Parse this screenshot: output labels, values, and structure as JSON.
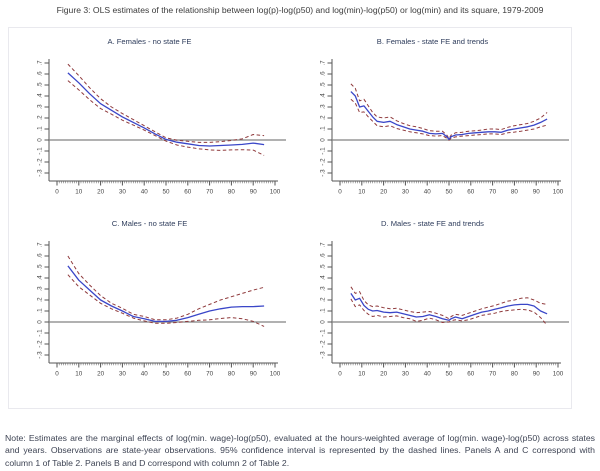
{
  "page": {
    "title": "Figure 3: OLS estimates of the relationship between log(p)-log(p50) and log(min)-log(p50) or log(min) and its square, 1979-2009",
    "note": "Note: Estimates are the marginal effects of log(min. wage)-log(p50), evaluated at the hours-weighted average of log(min. wage)-log(p50) across states and years. Observations are state-year observations. 95% confidence interval is represented by the dashed lines. Panels A and C correspond with column 1 of Table 2. Panels B and D correspond with column 2 of Table 2."
  },
  "colors": {
    "estimate_line": "#3a46c8",
    "ci_line": "#8f3a3c",
    "zero_line": "#828282",
    "axis": "#555555",
    "tick_label": "#444444"
  },
  "axis": {
    "xlim": [
      0,
      100
    ],
    "ylim": [
      -0.3,
      0.7
    ],
    "xticks": [
      0,
      10,
      20,
      30,
      40,
      50,
      60,
      70,
      80,
      90,
      100
    ],
    "x_minor_step": 1,
    "ytick_values": [
      0.7,
      0.6,
      0.5,
      0.4,
      0.3,
      0.2,
      0.1,
      0,
      -0.1,
      -0.2,
      -0.3
    ],
    "ytick_labels": [
      ".7",
      ".6",
      ".5",
      ".4",
      ".3",
      ".2",
      ".1",
      "0",
      "-.1",
      "-.2",
      "-.3"
    ],
    "grid": false,
    "legend": "none"
  },
  "chart_data": [
    {
      "type": "line",
      "panel": "A",
      "title": "A. Females - no state FE",
      "x": [
        5,
        10,
        15,
        20,
        25,
        30,
        35,
        40,
        45,
        50,
        55,
        60,
        65,
        70,
        75,
        80,
        85,
        90,
        95
      ],
      "series": [
        {
          "name": "estimate",
          "values": [
            0.61,
            0.52,
            0.42,
            0.33,
            0.27,
            0.21,
            0.16,
            0.11,
            0.055,
            0.005,
            -0.02,
            -0.035,
            -0.05,
            -0.055,
            -0.05,
            -0.045,
            -0.04,
            -0.028,
            -0.042
          ]
        },
        {
          "name": "ci_upper",
          "values": [
            0.69,
            0.585,
            0.475,
            0.375,
            0.3,
            0.24,
            0.185,
            0.13,
            0.075,
            0.02,
            -0.002,
            -0.012,
            -0.022,
            -0.022,
            -0.015,
            -0.005,
            0.01,
            0.05,
            0.04
          ]
        },
        {
          "name": "ci_lower",
          "values": [
            0.54,
            0.455,
            0.365,
            0.285,
            0.235,
            0.18,
            0.135,
            0.09,
            0.04,
            -0.01,
            -0.045,
            -0.065,
            -0.08,
            -0.09,
            -0.095,
            -0.09,
            -0.088,
            -0.092,
            -0.14
          ]
        }
      ]
    },
    {
      "type": "line",
      "panel": "B",
      "title": "B. Females - state FE and trends",
      "x": [
        5,
        7,
        9,
        11,
        13,
        15,
        17,
        20,
        23,
        26,
        29,
        32,
        35,
        38,
        41,
        44,
        47,
        49,
        50,
        51,
        53,
        56,
        59,
        62,
        65,
        68,
        71,
        74,
        77,
        80,
        83,
        86,
        89,
        92,
        95
      ],
      "series": [
        {
          "name": "estimate",
          "values": [
            0.44,
            0.4,
            0.3,
            0.31,
            0.26,
            0.21,
            0.17,
            0.16,
            0.17,
            0.14,
            0.12,
            0.1,
            0.09,
            0.08,
            0.06,
            0.055,
            0.06,
            0.03,
            0.005,
            0.03,
            0.045,
            0.05,
            0.06,
            0.065,
            0.07,
            0.075,
            0.075,
            0.07,
            0.09,
            0.1,
            0.11,
            0.12,
            0.135,
            0.16,
            0.19
          ]
        },
        {
          "name": "ci_upper",
          "values": [
            0.51,
            0.47,
            0.355,
            0.37,
            0.31,
            0.25,
            0.21,
            0.2,
            0.21,
            0.175,
            0.15,
            0.13,
            0.12,
            0.105,
            0.085,
            0.08,
            0.08,
            0.045,
            0.012,
            0.045,
            0.065,
            0.07,
            0.08,
            0.085,
            0.09,
            0.1,
            0.1,
            0.095,
            0.115,
            0.13,
            0.14,
            0.15,
            0.17,
            0.2,
            0.25
          ]
        },
        {
          "name": "ci_lower",
          "values": [
            0.37,
            0.335,
            0.25,
            0.255,
            0.21,
            0.17,
            0.13,
            0.12,
            0.13,
            0.105,
            0.09,
            0.075,
            0.065,
            0.055,
            0.04,
            0.035,
            0.04,
            0.015,
            -0.002,
            0.015,
            0.028,
            0.035,
            0.04,
            0.045,
            0.05,
            0.055,
            0.055,
            0.05,
            0.065,
            0.072,
            0.08,
            0.09,
            0.1,
            0.12,
            0.135
          ]
        }
      ]
    },
    {
      "type": "line",
      "panel": "C",
      "title": "C. Males - no state FE",
      "x": [
        5,
        10,
        15,
        20,
        25,
        30,
        35,
        40,
        45,
        50,
        55,
        60,
        65,
        70,
        75,
        80,
        85,
        90,
        95
      ],
      "series": [
        {
          "name": "estimate",
          "values": [
            0.51,
            0.38,
            0.29,
            0.2,
            0.145,
            0.1,
            0.05,
            0.03,
            0.005,
            0.005,
            0.015,
            0.04,
            0.07,
            0.1,
            0.12,
            0.135,
            0.14,
            0.14,
            0.145
          ]
        },
        {
          "name": "ci_upper",
          "values": [
            0.6,
            0.44,
            0.335,
            0.24,
            0.17,
            0.125,
            0.07,
            0.05,
            0.02,
            0.02,
            0.035,
            0.07,
            0.12,
            0.16,
            0.2,
            0.23,
            0.26,
            0.29,
            0.315
          ]
        },
        {
          "name": "ci_lower",
          "values": [
            0.43,
            0.32,
            0.245,
            0.17,
            0.12,
            0.08,
            0.035,
            0.01,
            -0.012,
            -0.012,
            -0.005,
            0.005,
            0.015,
            0.02,
            0.032,
            0.04,
            0.03,
            0.005,
            -0.04
          ]
        }
      ]
    },
    {
      "type": "line",
      "panel": "D",
      "title": "D. Males - state FE and trends",
      "x": [
        5,
        7,
        9,
        11,
        13,
        15,
        17,
        20,
        23,
        26,
        29,
        32,
        35,
        38,
        41,
        44,
        47,
        49,
        50,
        51,
        53,
        56,
        59,
        62,
        65,
        68,
        71,
        74,
        77,
        80,
        83,
        86,
        89,
        92,
        95
      ],
      "series": [
        {
          "name": "estimate",
          "values": [
            0.26,
            0.2,
            0.215,
            0.15,
            0.115,
            0.1,
            0.105,
            0.09,
            0.085,
            0.09,
            0.075,
            0.06,
            0.045,
            0.05,
            0.065,
            0.05,
            0.03,
            0.02,
            0.015,
            0.03,
            0.045,
            0.03,
            0.05,
            0.07,
            0.09,
            0.1,
            0.115,
            0.13,
            0.145,
            0.155,
            0.16,
            0.16,
            0.145,
            0.1,
            0.075
          ]
        },
        {
          "name": "ci_upper",
          "values": [
            0.32,
            0.26,
            0.275,
            0.195,
            0.155,
            0.14,
            0.145,
            0.13,
            0.12,
            0.125,
            0.11,
            0.095,
            0.085,
            0.09,
            0.095,
            0.08,
            0.06,
            0.04,
            0.03,
            0.05,
            0.07,
            0.06,
            0.08,
            0.1,
            0.12,
            0.135,
            0.15,
            0.17,
            0.19,
            0.2,
            0.215,
            0.22,
            0.2,
            0.17,
            0.16
          ]
        },
        {
          "name": "ci_lower",
          "values": [
            0.21,
            0.14,
            0.155,
            0.105,
            0.07,
            0.05,
            0.06,
            0.045,
            0.05,
            0.055,
            0.04,
            0.03,
            0.005,
            0.015,
            0.035,
            0.02,
            -0.005,
            0.0,
            0.0,
            0.012,
            0.02,
            0.01,
            0.02,
            0.04,
            0.06,
            0.07,
            0.08,
            0.095,
            0.105,
            0.11,
            0.115,
            0.11,
            0.09,
            0.04,
            -0.03
          ]
        }
      ]
    }
  ]
}
